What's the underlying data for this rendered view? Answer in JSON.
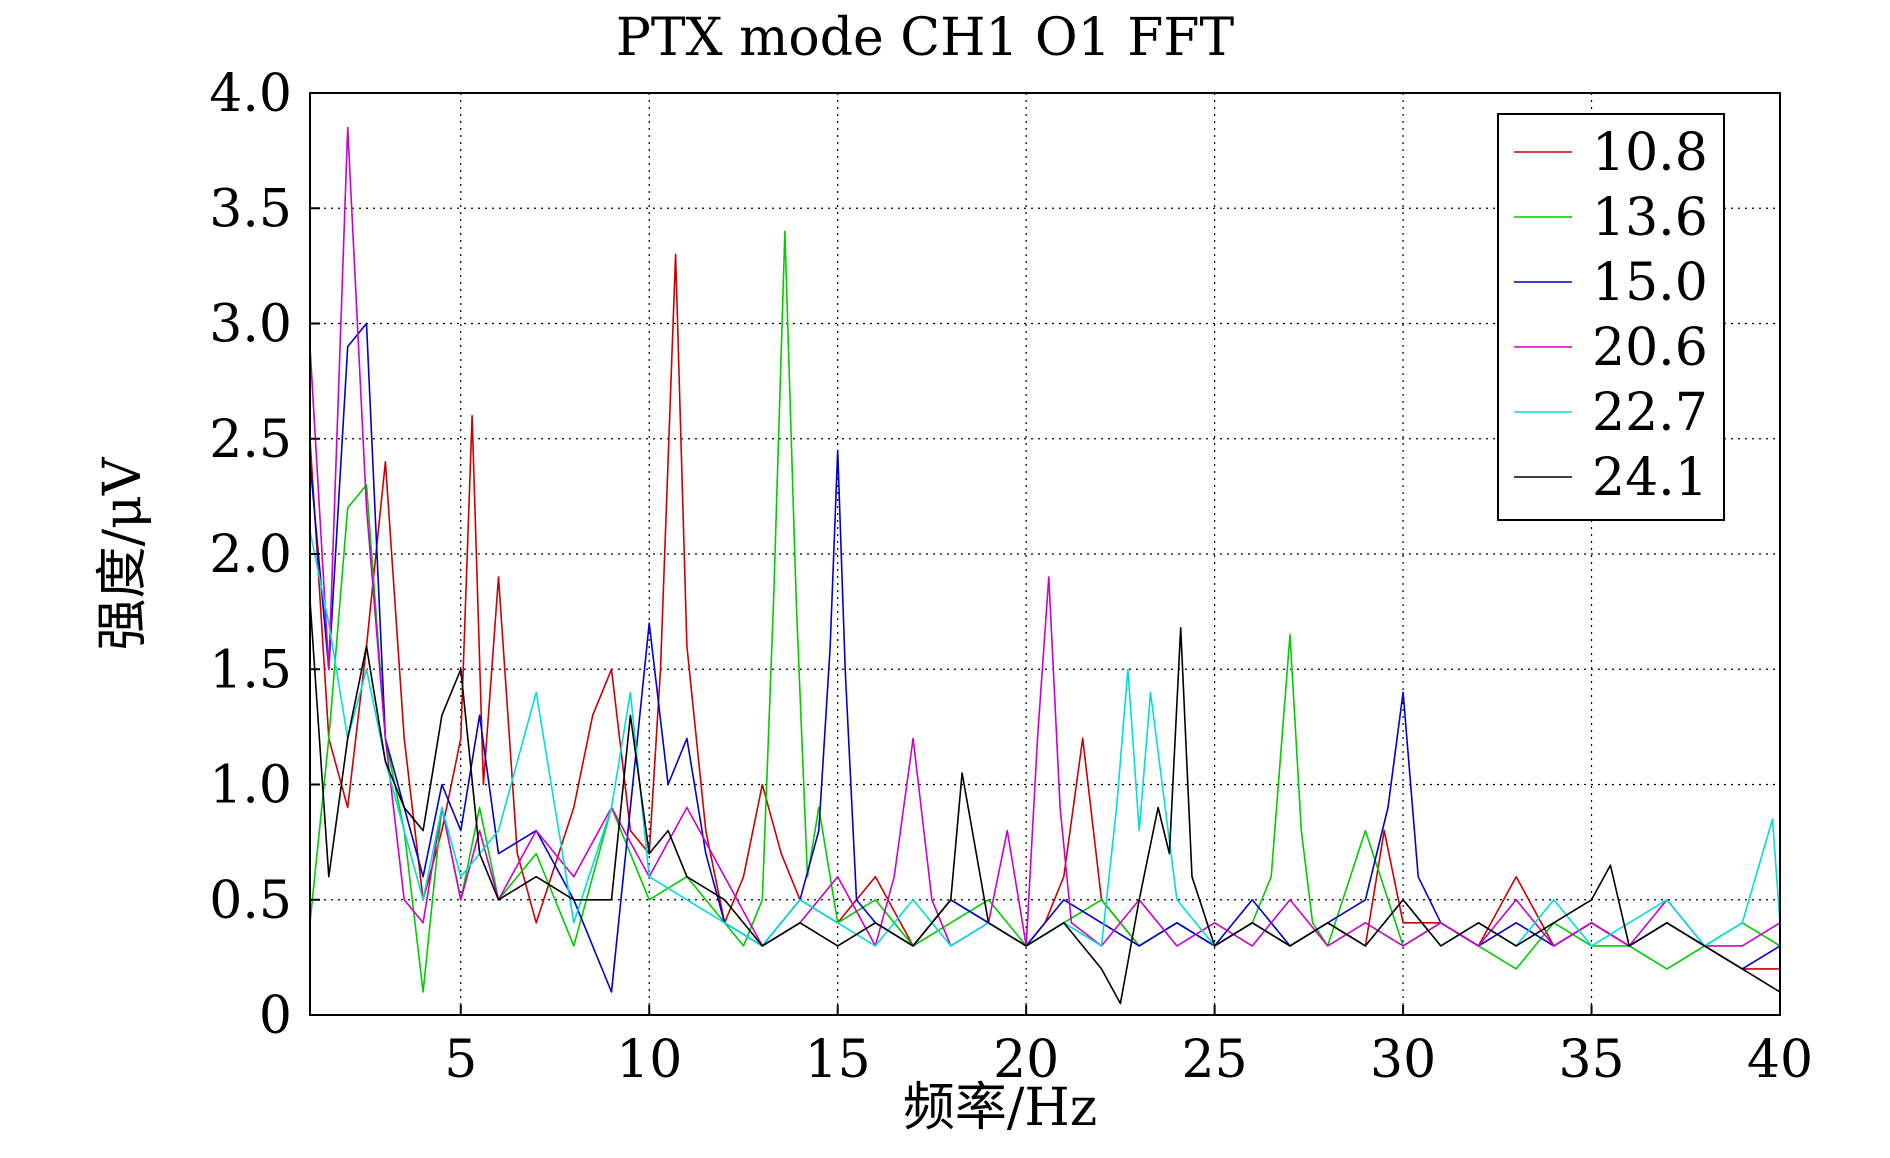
{
  "chart_data": {
    "type": "line",
    "title": "PTX mode CH1 O1 FFT",
    "xlabel": "频率/Hz",
    "ylabel": "强度/μV",
    "xlim": [
      1,
      40
    ],
    "ylim": [
      0,
      4
    ],
    "xticks": [
      "5",
      "10",
      "15",
      "20",
      "25",
      "30",
      "35",
      "40"
    ],
    "yticks": [
      "0",
      "0.5",
      "1.0",
      "1.5",
      "2.0",
      "2.5",
      "3.0",
      "3.5",
      "4.0"
    ],
    "grid": true,
    "legend_position": "top-right",
    "series": [
      {
        "name": "10.8",
        "color": "#cc0000",
        "x": [
          1,
          1.5,
          2,
          2.5,
          3,
          3.5,
          4,
          4.5,
          5,
          5.3,
          5.6,
          6,
          6.5,
          7,
          8,
          8.5,
          9,
          9.5,
          10,
          10.3,
          10.7,
          11,
          11.5,
          12,
          12.5,
          13,
          13.5,
          14,
          15,
          16,
          17,
          18,
          19,
          20,
          20.5,
          21,
          21.5,
          22,
          23,
          24,
          25,
          26,
          27,
          28,
          29,
          29.5,
          30,
          31,
          32,
          33,
          34,
          35,
          36,
          37,
          38,
          39,
          40
        ],
        "y": [
          2.5,
          1.2,
          0.9,
          1.6,
          2.4,
          1.2,
          0.5,
          0.8,
          1.2,
          2.6,
          1.0,
          1.9,
          0.7,
          0.4,
          0.9,
          1.3,
          1.5,
          0.8,
          0.7,
          1.5,
          3.3,
          1.6,
          0.8,
          0.4,
          0.6,
          1.0,
          0.7,
          0.5,
          0.4,
          0.6,
          0.3,
          0.5,
          0.4,
          0.3,
          0.4,
          0.6,
          1.2,
          0.5,
          0.3,
          0.4,
          0.3,
          0.4,
          0.3,
          0.4,
          0.3,
          0.8,
          0.4,
          0.4,
          0.3,
          0.6,
          0.3,
          0.4,
          0.3,
          0.4,
          0.3,
          0.2,
          0.2
        ]
      },
      {
        "name": "13.6",
        "color": "#00cc00",
        "x": [
          1,
          1.5,
          2,
          2.5,
          3,
          3.5,
          4,
          4.5,
          5,
          5.5,
          6,
          7,
          8,
          9,
          10,
          11,
          12,
          12.5,
          13,
          13.3,
          13.6,
          13.9,
          14.2,
          14.5,
          15,
          16,
          17,
          18,
          19,
          20,
          21,
          22,
          23,
          24,
          25,
          26,
          26.5,
          27,
          27.3,
          27.6,
          28,
          29,
          30,
          31,
          32,
          33,
          34,
          35,
          36,
          37,
          38,
          39,
          40
        ],
        "y": [
          0.4,
          1.2,
          2.2,
          2.3,
          1.2,
          0.8,
          0.1,
          0.9,
          0.5,
          0.9,
          0.5,
          0.7,
          0.3,
          0.9,
          0.5,
          0.6,
          0.4,
          0.3,
          0.5,
          1.8,
          3.4,
          1.8,
          0.6,
          0.9,
          0.4,
          0.5,
          0.3,
          0.4,
          0.5,
          0.3,
          0.4,
          0.5,
          0.3,
          0.4,
          0.3,
          0.4,
          0.6,
          1.65,
          0.8,
          0.4,
          0.3,
          0.8,
          0.3,
          0.4,
          0.3,
          0.2,
          0.4,
          0.3,
          0.3,
          0.2,
          0.3,
          0.4,
          0.3
        ]
      },
      {
        "name": "15.0",
        "color": "#0000cc",
        "x": [
          1,
          1.5,
          2,
          2.5,
          3,
          3.5,
          4,
          4.5,
          5,
          5.5,
          6,
          7,
          8,
          9,
          9.5,
          10,
          10.5,
          11,
          11.5,
          12,
          13,
          14,
          14.5,
          14.8,
          15,
          15.2,
          15.5,
          16,
          17,
          18,
          19,
          20,
          21,
          22,
          23,
          24,
          25,
          26,
          27,
          28,
          29,
          29.6,
          30,
          30.4,
          31,
          32,
          33,
          34,
          35,
          36,
          37,
          38,
          39,
          40
        ],
        "y": [
          2.4,
          1.5,
          2.9,
          3.0,
          1.2,
          0.9,
          0.6,
          1.0,
          0.8,
          1.3,
          0.7,
          0.8,
          0.5,
          0.1,
          0.9,
          1.7,
          1.0,
          1.2,
          0.7,
          0.4,
          0.3,
          0.5,
          0.8,
          1.6,
          2.45,
          1.5,
          0.5,
          0.4,
          0.3,
          0.5,
          0.4,
          0.3,
          0.5,
          0.4,
          0.3,
          0.4,
          0.3,
          0.5,
          0.3,
          0.4,
          0.5,
          0.9,
          1.4,
          0.6,
          0.4,
          0.3,
          0.4,
          0.3,
          0.4,
          0.3,
          0.4,
          0.3,
          0.2,
          0.3
        ]
      },
      {
        "name": "20.6",
        "color": "#cc00cc",
        "x": [
          1,
          1.5,
          2,
          2.5,
          3,
          3.5,
          4,
          4.5,
          5,
          5.5,
          6,
          7,
          8,
          9,
          10,
          11,
          12,
          13,
          14,
          15,
          16,
          16.5,
          17,
          17.5,
          18,
          19,
          19.5,
          20,
          20.3,
          20.6,
          20.9,
          21.2,
          22,
          23,
          24,
          25,
          26,
          27,
          28,
          29,
          30,
          31,
          32,
          33,
          34,
          35,
          36,
          37,
          38,
          39,
          40
        ],
        "y": [
          2.9,
          1.5,
          3.85,
          2.2,
          1.2,
          0.5,
          0.4,
          0.9,
          0.5,
          0.8,
          0.5,
          0.8,
          0.6,
          0.9,
          0.6,
          0.9,
          0.6,
          0.3,
          0.4,
          0.6,
          0.3,
          0.6,
          1.2,
          0.5,
          0.3,
          0.4,
          0.8,
          0.3,
          1.2,
          1.9,
          0.9,
          0.4,
          0.3,
          0.5,
          0.3,
          0.4,
          0.3,
          0.5,
          0.3,
          0.4,
          0.3,
          0.4,
          0.3,
          0.5,
          0.3,
          0.4,
          0.3,
          0.5,
          0.3,
          0.3,
          0.4
        ]
      },
      {
        "name": "22.7",
        "color": "#00dddd",
        "x": [
          1,
          1.5,
          2,
          2.5,
          3,
          3.5,
          4,
          4.5,
          5,
          5.5,
          6,
          7,
          8,
          9,
          9.5,
          10,
          11,
          12,
          13,
          14,
          15,
          16,
          17,
          18,
          19,
          20,
          21,
          22,
          22.4,
          22.7,
          23,
          23.3,
          24,
          25,
          26,
          27,
          28,
          29,
          30,
          31,
          32,
          33,
          34,
          35,
          36,
          37,
          38,
          39,
          39.8,
          40
        ],
        "y": [
          2.1,
          1.7,
          1.2,
          1.5,
          1.1,
          0.8,
          0.5,
          0.9,
          0.6,
          0.7,
          0.8,
          1.4,
          0.4,
          0.9,
          1.4,
          0.6,
          0.5,
          0.4,
          0.3,
          0.5,
          0.4,
          0.3,
          0.5,
          0.3,
          0.4,
          0.3,
          0.4,
          0.3,
          0.9,
          1.5,
          0.8,
          1.4,
          0.5,
          0.3,
          0.4,
          0.3,
          0.4,
          0.3,
          0.5,
          0.3,
          0.4,
          0.3,
          0.5,
          0.3,
          0.4,
          0.5,
          0.3,
          0.4,
          0.85,
          0.4
        ]
      },
      {
        "name": "24.1",
        "color": "#000000",
        "x": [
          1,
          1.5,
          2,
          2.5,
          3,
          3.5,
          4,
          4.5,
          5,
          5.5,
          6,
          7,
          8,
          9,
          9.5,
          10,
          10.5,
          11,
          12,
          13,
          14,
          15,
          16,
          17,
          18,
          18.3,
          19,
          20,
          21,
          22,
          22.5,
          23,
          23.5,
          23.8,
          24.1,
          24.4,
          25,
          26,
          27,
          28,
          29,
          30,
          31,
          32,
          33,
          34,
          35,
          35.5,
          36,
          37,
          38,
          39,
          40
        ],
        "y": [
          1.8,
          0.6,
          1.2,
          1.6,
          1.1,
          0.9,
          0.8,
          1.3,
          1.5,
          0.7,
          0.5,
          0.6,
          0.5,
          0.5,
          1.3,
          0.7,
          0.8,
          0.6,
          0.5,
          0.3,
          0.4,
          0.3,
          0.4,
          0.3,
          0.5,
          1.05,
          0.4,
          0.3,
          0.4,
          0.2,
          0.05,
          0.5,
          0.9,
          0.7,
          1.68,
          0.6,
          0.3,
          0.4,
          0.3,
          0.4,
          0.3,
          0.5,
          0.3,
          0.4,
          0.3,
          0.4,
          0.5,
          0.65,
          0.3,
          0.4,
          0.3,
          0.2,
          0.1
        ]
      }
    ]
  }
}
